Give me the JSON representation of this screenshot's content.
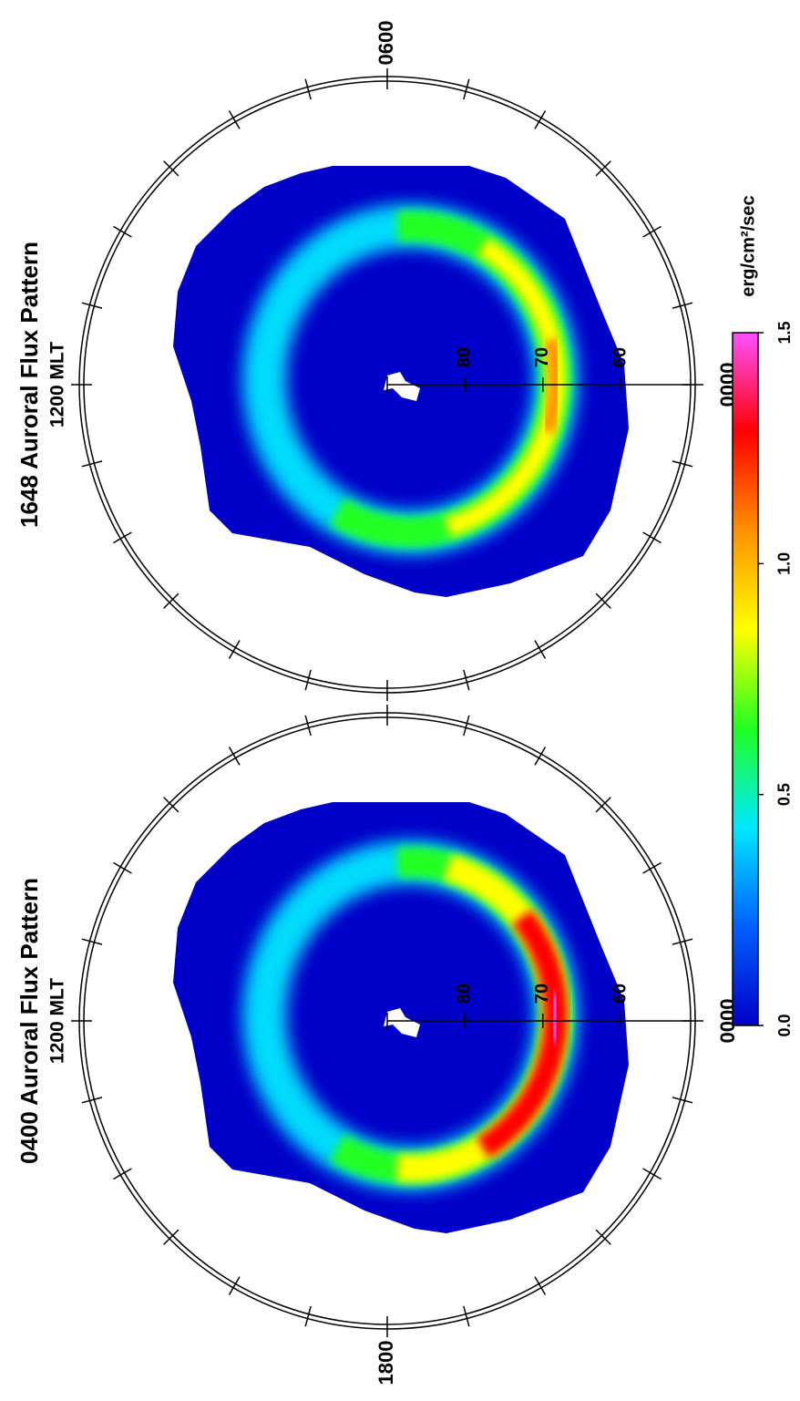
{
  "chart_data": [
    {
      "type": "polar",
      "title": "1648 Auroral Flux Pattern",
      "subtitle": "1200 MLT",
      "angle_labels": [
        {
          "value": 0,
          "label": "0000"
        },
        {
          "value": 6,
          "label": "0600"
        }
      ],
      "rlim": [
        90,
        51
      ],
      "rticks": [
        80,
        70,
        60
      ],
      "intensity": "moderate"
    },
    {
      "type": "polar",
      "title": "0400 Auroral Flux Pattern",
      "subtitle": "1200 MLT",
      "angle_labels": [
        {
          "value": 0,
          "label": "0000"
        },
        {
          "value": 18,
          "label": "1800"
        }
      ],
      "rlim": [
        90,
        51
      ],
      "rticks": [
        80,
        70,
        60
      ],
      "intensity": "strong"
    },
    {
      "type": "colorbar",
      "label": "erg/cm²/sec",
      "lim": [
        0,
        1.5
      ],
      "ticks": [
        {
          "value": 0,
          "label": "0.0"
        },
        0.5,
        {
          "value": 1,
          "label": "1.0"
        },
        1.5
      ],
      "colors": [
        "#0000c8",
        "#0060ff",
        "#00e8ff",
        "#20ff20",
        "#ffff00",
        "#ff9000",
        "#ff0000",
        "#ff50ff"
      ]
    }
  ]
}
